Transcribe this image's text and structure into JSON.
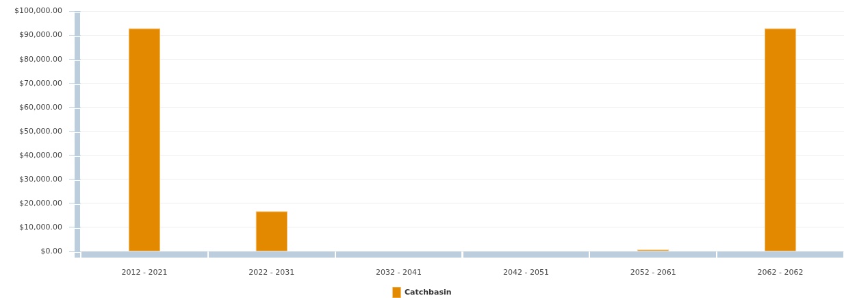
{
  "chart_data": {
    "type": "bar",
    "categories": [
      "2012 - 2021",
      "2022 - 2031",
      "2032 - 2041",
      "2042 - 2051",
      "2052 - 2061",
      "2062 - 2062"
    ],
    "series": [
      {
        "name": "Catchbasin",
        "color": "#e38900",
        "values": [
          93000,
          16800,
          null,
          null,
          800,
          93000
        ]
      }
    ],
    "ylim": [
      0,
      100000
    ],
    "yticks": [
      {
        "value": 0,
        "label": "$0.00"
      },
      {
        "value": 10000,
        "label": "$10,000.00"
      },
      {
        "value": 20000,
        "label": "$20,000.00"
      },
      {
        "value": 30000,
        "label": "$30,000.00"
      },
      {
        "value": 40000,
        "label": "$40,000.00"
      },
      {
        "value": 50000,
        "label": "$50,000.00"
      },
      {
        "value": 60000,
        "label": "$60,000.00"
      },
      {
        "value": 70000,
        "label": "$70,000.00"
      },
      {
        "value": 80000,
        "label": "$80,000.00"
      },
      {
        "value": 90000,
        "label": "$90,000.00"
      },
      {
        "value": 100000,
        "label": "$100,000.00"
      }
    ],
    "grid": "y",
    "legend": "bottom"
  }
}
